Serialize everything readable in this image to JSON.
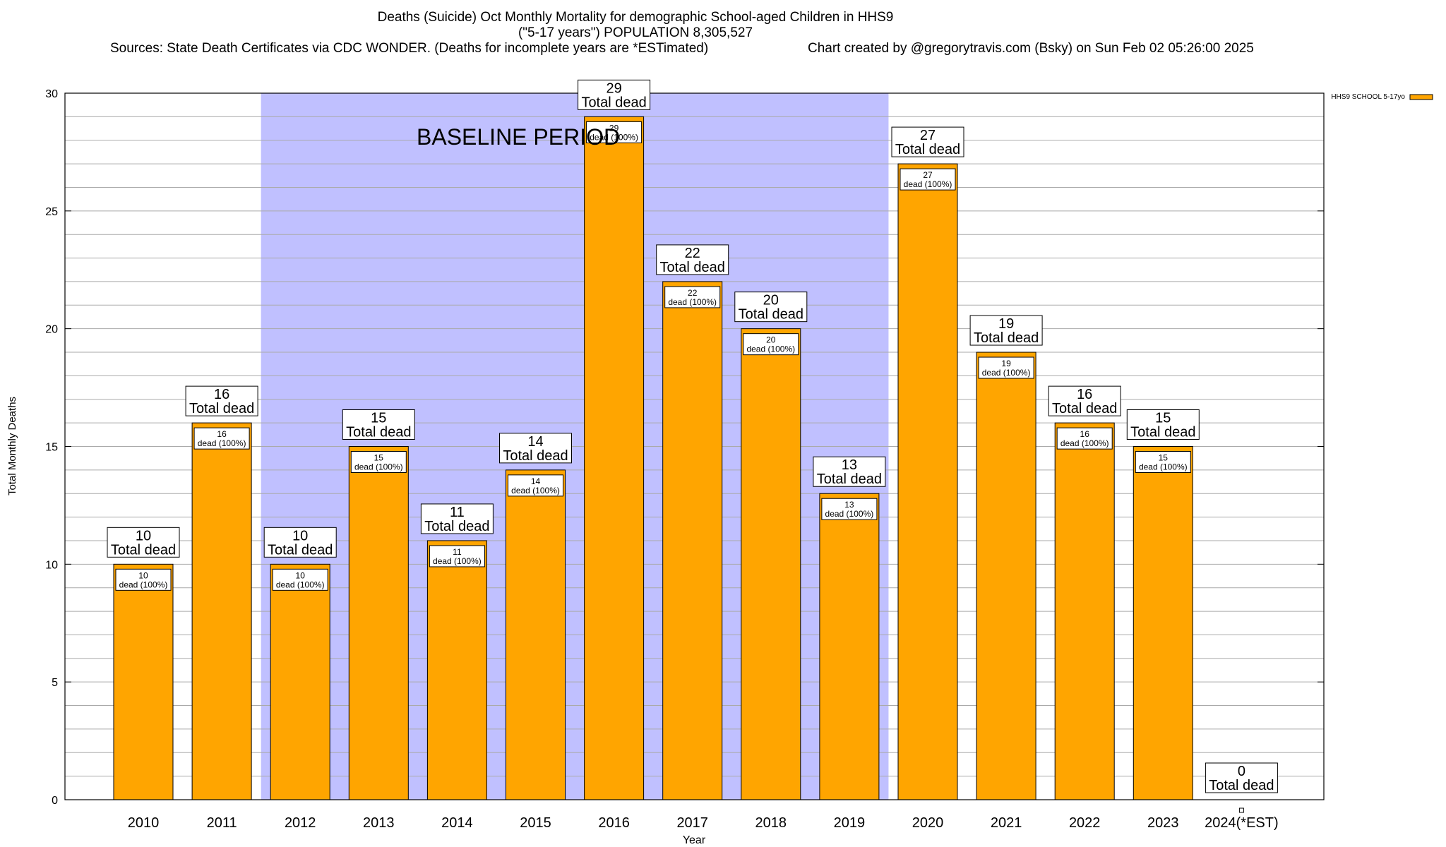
{
  "title": {
    "line1": "Deaths (Suicide) Oct Monthly Mortality for demographic School-aged Children in HHS9",
    "line2": "(\"5-17 years\") POPULATION 8,305,527",
    "sources": "Sources: State Death Certificates via CDC WONDER. (Deaths for incomplete years are *ESTimated)",
    "credit": "Chart created by @gregorytravis.com (Bsky) on Sun Feb 02 05:26:00 2025"
  },
  "chart_data": {
    "type": "bar",
    "xlabel": "Year",
    "ylabel": "Total Monthly Deaths",
    "ylim": [
      0,
      30
    ],
    "yticks": [
      0,
      5,
      10,
      15,
      20,
      25,
      30
    ],
    "legend": {
      "label": "HHS9 SCHOOL 5-17yo",
      "position": "top-right",
      "color": "#ffa500"
    },
    "baseline": {
      "label": "BASELINE PERIOD",
      "start": "2012",
      "end": "2019",
      "color": "#c0c0ff"
    },
    "categories": [
      "2010",
      "2011",
      "2012",
      "2013",
      "2014",
      "2015",
      "2016",
      "2017",
      "2018",
      "2019",
      "2020",
      "2021",
      "2022",
      "2023",
      "2024(*EST)"
    ],
    "values": [
      10,
      16,
      10,
      15,
      11,
      14,
      29,
      22,
      20,
      13,
      27,
      19,
      16,
      15,
      0
    ],
    "total_label": "Total dead",
    "inner_label": "dead (100%)",
    "bar_color": "#ffa500"
  }
}
